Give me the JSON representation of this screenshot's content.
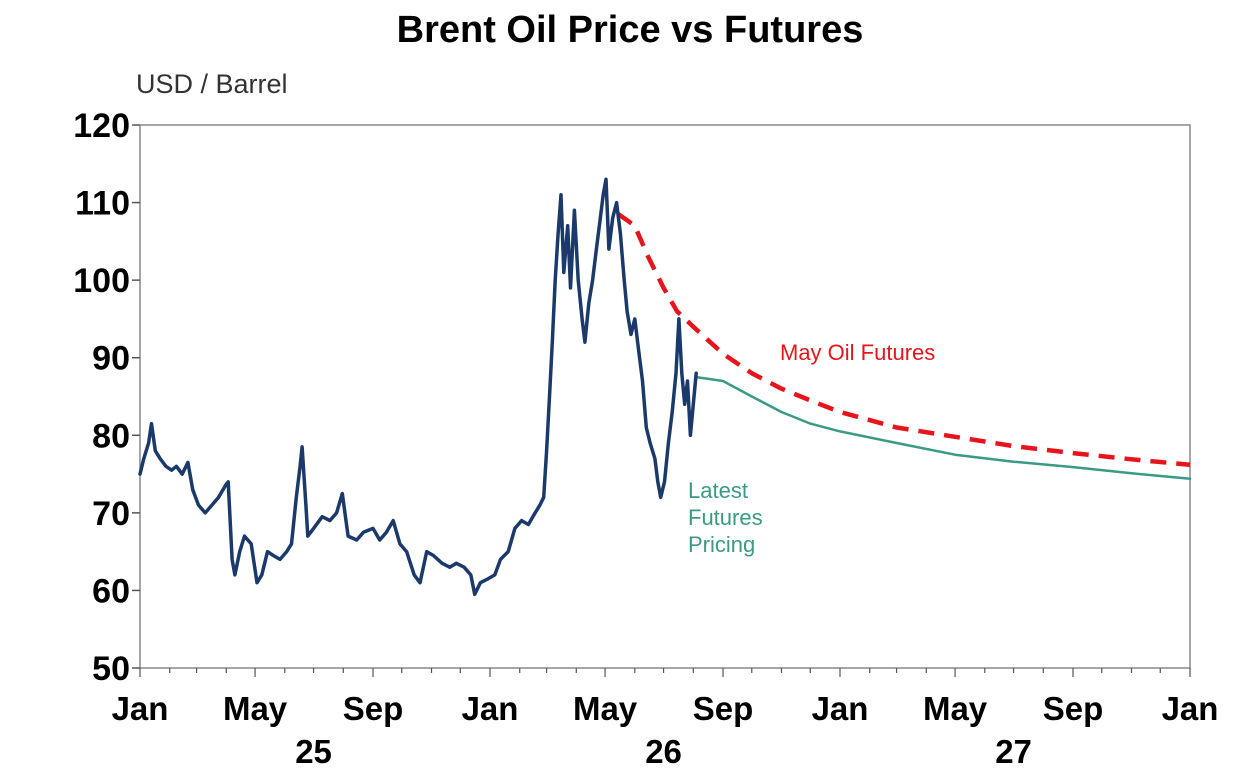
{
  "chart_data": {
    "type": "line",
    "title": "Brent Oil Price vs Futures",
    "ylabel": "USD / Barrel",
    "xlabel": "",
    "ylim": [
      50,
      120
    ],
    "yticks": [
      "50",
      "60",
      "70",
      "80",
      "90",
      "100",
      "110",
      "120"
    ],
    "xlim": [
      "2025-01-01",
      "2028-01-01"
    ],
    "xticks": [
      {
        "date": "2025-01-01",
        "label": "Jan"
      },
      {
        "date": "2025-05-01",
        "label": "May"
      },
      {
        "date": "2025-09-01",
        "label": "Sep"
      },
      {
        "date": "2026-01-01",
        "label": "Jan"
      },
      {
        "date": "2026-05-01",
        "label": "May"
      },
      {
        "date": "2026-09-01",
        "label": "Sep"
      },
      {
        "date": "2027-01-01",
        "label": "Jan"
      },
      {
        "date": "2027-05-01",
        "label": "May"
      },
      {
        "date": "2027-09-01",
        "label": "Sep"
      },
      {
        "date": "2028-01-01",
        "label": "Jan"
      }
    ],
    "year_labels": [
      {
        "date": "2025-07-01",
        "label": "25"
      },
      {
        "date": "2026-07-01",
        "label": "26"
      },
      {
        "date": "2027-07-01",
        "label": "27"
      }
    ],
    "grid": false,
    "colors": {
      "brent": "#1b3a6b",
      "may_futures": "#e8141b",
      "latest_futures": "#3a9a84"
    },
    "series": [
      {
        "key": "brent",
        "style": "solid",
        "points": [
          [
            "2025-01-01",
            75
          ],
          [
            "2025-01-05",
            77
          ],
          [
            "2025-01-10",
            79
          ],
          [
            "2025-01-13",
            81.5
          ],
          [
            "2025-01-17",
            78
          ],
          [
            "2025-01-22",
            77
          ],
          [
            "2025-01-28",
            76
          ],
          [
            "2025-02-03",
            75.5
          ],
          [
            "2025-02-08",
            76
          ],
          [
            "2025-02-14",
            75
          ],
          [
            "2025-02-20",
            76.5
          ],
          [
            "2025-02-25",
            73
          ],
          [
            "2025-03-03",
            71
          ],
          [
            "2025-03-10",
            70
          ],
          [
            "2025-03-17",
            71
          ],
          [
            "2025-03-24",
            72
          ],
          [
            "2025-03-31",
            73.5
          ],
          [
            "2025-04-03",
            74
          ],
          [
            "2025-04-07",
            64
          ],
          [
            "2025-04-10",
            62
          ],
          [
            "2025-04-15",
            65
          ],
          [
            "2025-04-20",
            67
          ],
          [
            "2025-04-27",
            66
          ],
          [
            "2025-05-03",
            61
          ],
          [
            "2025-05-08",
            62
          ],
          [
            "2025-05-14",
            65
          ],
          [
            "2025-05-20",
            64.5
          ],
          [
            "2025-05-27",
            64
          ],
          [
            "2025-06-03",
            65
          ],
          [
            "2025-06-08",
            66
          ],
          [
            "2025-06-13",
            72
          ],
          [
            "2025-06-17",
            76
          ],
          [
            "2025-06-19",
            78.5
          ],
          [
            "2025-06-23",
            71
          ],
          [
            "2025-06-25",
            67
          ],
          [
            "2025-07-01",
            68
          ],
          [
            "2025-07-10",
            69.5
          ],
          [
            "2025-07-18",
            69
          ],
          [
            "2025-07-25",
            70
          ],
          [
            "2025-07-31",
            72.5
          ],
          [
            "2025-08-06",
            67
          ],
          [
            "2025-08-15",
            66.5
          ],
          [
            "2025-08-22",
            67.5
          ],
          [
            "2025-09-01",
            68
          ],
          [
            "2025-09-08",
            66.5
          ],
          [
            "2025-09-15",
            67.5
          ],
          [
            "2025-09-22",
            69
          ],
          [
            "2025-09-29",
            66
          ],
          [
            "2025-10-06",
            65
          ],
          [
            "2025-10-14",
            62
          ],
          [
            "2025-10-20",
            61
          ],
          [
            "2025-10-27",
            65
          ],
          [
            "2025-11-03",
            64.5
          ],
          [
            "2025-11-12",
            63.5
          ],
          [
            "2025-11-20",
            63
          ],
          [
            "2025-11-27",
            63.5
          ],
          [
            "2025-12-05",
            63
          ],
          [
            "2025-12-12",
            62
          ],
          [
            "2025-12-16",
            59.5
          ],
          [
            "2025-12-22",
            61
          ],
          [
            "2025-12-30",
            61.5
          ],
          [
            "2026-01-06",
            62
          ],
          [
            "2026-01-12",
            64
          ],
          [
            "2026-01-20",
            65
          ],
          [
            "2026-01-27",
            68
          ],
          [
            "2026-02-03",
            69
          ],
          [
            "2026-02-10",
            68.5
          ],
          [
            "2026-02-17",
            70
          ],
          [
            "2026-02-22",
            71
          ],
          [
            "2026-02-26",
            72
          ],
          [
            "2026-03-01",
            78
          ],
          [
            "2026-03-04",
            85
          ],
          [
            "2026-03-07",
            92
          ],
          [
            "2026-03-10",
            100
          ],
          [
            "2026-03-13",
            106
          ],
          [
            "2026-03-16",
            111
          ],
          [
            "2026-03-19",
            101
          ],
          [
            "2026-03-23",
            107
          ],
          [
            "2026-03-26",
            99
          ],
          [
            "2026-03-30",
            109
          ],
          [
            "2026-04-03",
            100
          ],
          [
            "2026-04-07",
            95
          ],
          [
            "2026-04-10",
            92
          ],
          [
            "2026-04-14",
            97
          ],
          [
            "2026-04-18",
            100
          ],
          [
            "2026-04-22",
            104
          ],
          [
            "2026-04-26",
            108
          ],
          [
            "2026-04-29",
            111
          ],
          [
            "2026-05-02",
            113
          ],
          [
            "2026-05-05",
            104
          ],
          [
            "2026-05-09",
            108
          ],
          [
            "2026-05-13",
            110
          ],
          [
            "2026-05-17",
            106
          ],
          [
            "2026-05-21",
            100
          ],
          [
            "2026-05-24",
            96
          ],
          [
            "2026-05-28",
            93
          ],
          [
            "2026-06-01",
            95
          ],
          [
            "2026-06-05",
            91
          ],
          [
            "2026-06-09",
            87
          ],
          [
            "2026-06-13",
            81
          ],
          [
            "2026-06-17",
            79
          ],
          [
            "2026-06-22",
            77
          ],
          [
            "2026-06-25",
            74
          ],
          [
            "2026-06-28",
            72
          ],
          [
            "2026-07-02",
            74
          ],
          [
            "2026-07-06",
            79
          ],
          [
            "2026-07-10",
            83
          ],
          [
            "2026-07-14",
            88
          ],
          [
            "2026-07-17",
            95
          ],
          [
            "2026-07-20",
            88
          ],
          [
            "2026-07-23",
            84
          ],
          [
            "2026-07-26",
            87
          ],
          [
            "2026-07-29",
            80
          ],
          [
            "2026-08-01",
            84
          ],
          [
            "2026-08-04",
            88
          ]
        ]
      },
      {
        "key": "latest_futures",
        "name": "Latest Futures Pricing",
        "style": "solid",
        "points": [
          [
            "2026-08-04",
            87.5
          ],
          [
            "2026-09-01",
            87
          ],
          [
            "2026-10-01",
            85
          ],
          [
            "2026-11-01",
            83
          ],
          [
            "2026-12-01",
            81.5
          ],
          [
            "2027-01-01",
            80.5
          ],
          [
            "2027-03-01",
            79
          ],
          [
            "2027-05-01",
            77.5
          ],
          [
            "2027-07-01",
            76.6
          ],
          [
            "2027-09-01",
            75.9
          ],
          [
            "2027-11-01",
            75.1
          ],
          [
            "2028-01-01",
            74.4
          ]
        ]
      },
      {
        "key": "may_futures",
        "name": "May Oil Futures",
        "style": "dashed",
        "points": [
          [
            "2026-05-15",
            108.5
          ],
          [
            "2026-06-01",
            107
          ],
          [
            "2026-06-15",
            103
          ],
          [
            "2026-07-01",
            99
          ],
          [
            "2026-07-15",
            96
          ],
          [
            "2026-08-01",
            94
          ],
          [
            "2026-09-01",
            90.5
          ],
          [
            "2026-10-01",
            88
          ],
          [
            "2026-11-01",
            86
          ],
          [
            "2026-12-01",
            84.5
          ],
          [
            "2027-01-01",
            83
          ],
          [
            "2027-03-01",
            81
          ],
          [
            "2027-05-01",
            79.8
          ],
          [
            "2027-07-01",
            78.6
          ],
          [
            "2027-09-01",
            77.7
          ],
          [
            "2027-11-01",
            76.9
          ],
          [
            "2028-01-01",
            76.2
          ]
        ]
      }
    ]
  }
}
